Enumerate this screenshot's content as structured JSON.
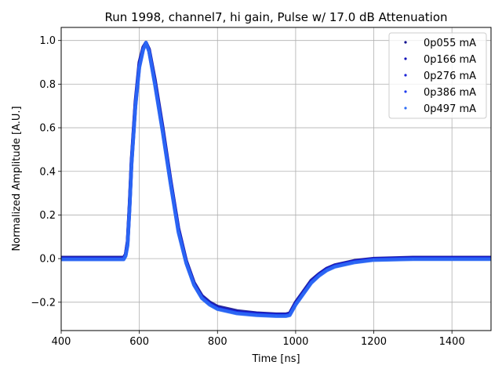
{
  "chart_data": {
    "type": "scatter",
    "title": "Run 1998, channel7, hi gain, Pulse w/ 17.0 dB Attenuation",
    "xlabel": "Time [ns]",
    "ylabel": "Normalized Amplitude [A.U.]",
    "xlim": [
      400,
      1500
    ],
    "ylim": [
      -0.33,
      1.06
    ],
    "xticks": [
      400,
      600,
      800,
      1000,
      1200,
      1400
    ],
    "yticks": [
      -0.2,
      0.0,
      0.2,
      0.4,
      0.6,
      0.8,
      1.0
    ],
    "xtick_labels": [
      "400",
      "600",
      "800",
      "1000",
      "1200",
      "1400"
    ],
    "ytick_labels": [
      "−0.2",
      "0.0",
      "0.2",
      "0.4",
      "0.6",
      "0.8",
      "1.0"
    ],
    "grid": true,
    "legend_position": "top-right",
    "x": [
      400,
      560,
      565,
      570,
      575,
      580,
      590,
      600,
      610,
      617,
      625,
      640,
      660,
      680,
      700,
      720,
      740,
      760,
      780,
      800,
      850,
      900,
      950,
      975,
      985,
      1000,
      1020,
      1040,
      1060,
      1080,
      1100,
      1150,
      1200,
      1300,
      1400,
      1500
    ],
    "series": [
      {
        "name": "0p055 mA",
        "color": "#0b0b8c",
        "values": [
          0.005,
          0.005,
          0.02,
          0.08,
          0.25,
          0.45,
          0.72,
          0.9,
          0.97,
          0.99,
          0.96,
          0.82,
          0.6,
          0.36,
          0.14,
          -0.01,
          -0.11,
          -0.17,
          -0.2,
          -0.22,
          -0.24,
          -0.25,
          -0.255,
          -0.255,
          -0.25,
          -0.2,
          -0.15,
          -0.1,
          -0.07,
          -0.045,
          -0.03,
          -0.01,
          0.0,
          0.005,
          0.005,
          0.005
        ]
      },
      {
        "name": "0p166 mA",
        "color": "#1212b8",
        "values": [
          0.002,
          0.002,
          0.018,
          0.075,
          0.24,
          0.44,
          0.71,
          0.89,
          0.965,
          0.99,
          0.955,
          0.81,
          0.59,
          0.355,
          0.135,
          -0.015,
          -0.115,
          -0.175,
          -0.205,
          -0.225,
          -0.245,
          -0.252,
          -0.257,
          -0.257,
          -0.252,
          -0.205,
          -0.155,
          -0.105,
          -0.072,
          -0.047,
          -0.032,
          -0.012,
          -0.002,
          0.003,
          0.003,
          0.003
        ]
      },
      {
        "name": "0p276 mA",
        "color": "#1a22d8",
        "values": [
          0.0,
          0.0,
          0.016,
          0.07,
          0.235,
          0.435,
          0.705,
          0.885,
          0.962,
          0.99,
          0.952,
          0.805,
          0.585,
          0.35,
          0.13,
          -0.018,
          -0.118,
          -0.178,
          -0.208,
          -0.228,
          -0.248,
          -0.255,
          -0.26,
          -0.26,
          -0.255,
          -0.208,
          -0.158,
          -0.108,
          -0.075,
          -0.05,
          -0.034,
          -0.014,
          -0.003,
          0.001,
          0.001,
          0.001
        ]
      },
      {
        "name": "0p386 mA",
        "color": "#1f3cf0",
        "values": [
          -0.002,
          -0.002,
          0.014,
          0.065,
          0.23,
          0.43,
          0.7,
          0.88,
          0.96,
          0.99,
          0.95,
          0.8,
          0.58,
          0.345,
          0.125,
          -0.02,
          -0.12,
          -0.18,
          -0.21,
          -0.23,
          -0.25,
          -0.258,
          -0.262,
          -0.262,
          -0.258,
          -0.21,
          -0.16,
          -0.11,
          -0.077,
          -0.052,
          -0.036,
          -0.016,
          -0.005,
          -0.001,
          -0.001,
          -0.001
        ]
      },
      {
        "name": "0p497 mA",
        "color": "#2d6cf5",
        "values": [
          -0.004,
          -0.004,
          0.012,
          0.06,
          0.225,
          0.425,
          0.695,
          0.875,
          0.958,
          0.99,
          0.948,
          0.795,
          0.575,
          0.34,
          0.12,
          -0.022,
          -0.122,
          -0.182,
          -0.212,
          -0.232,
          -0.252,
          -0.26,
          -0.264,
          -0.264,
          -0.26,
          -0.212,
          -0.162,
          -0.112,
          -0.079,
          -0.054,
          -0.038,
          -0.018,
          -0.007,
          -0.003,
          -0.003,
          -0.003
        ]
      }
    ]
  }
}
